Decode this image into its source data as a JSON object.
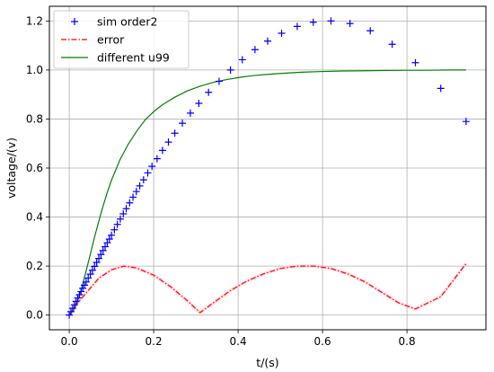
{
  "chart_data": {
    "type": "line",
    "title": "",
    "xlabel": "t/(s)",
    "ylabel": "voltage/(v)",
    "xlim": [
      -0.047,
      0.987
    ],
    "ylim": [
      -0.06,
      1.26
    ],
    "xticks": [
      "0.0",
      "0.2",
      "0.4",
      "0.6",
      "0.8"
    ],
    "xtick_values": [
      0.0,
      0.2,
      0.4,
      0.6,
      0.8
    ],
    "yticks": [
      "0.0",
      "0.2",
      "0.4",
      "0.6",
      "0.8",
      "1.0",
      "1.2"
    ],
    "ytick_values": [
      0.0,
      0.2,
      0.4,
      0.6,
      0.8,
      1.0,
      1.2
    ],
    "grid": true,
    "legend_position": "top-left",
    "series": [
      {
        "name": "sim order2",
        "style": "markers",
        "marker": "plus",
        "color": "#0000ff",
        "x": [
          0.0,
          0.004,
          0.008,
          0.012,
          0.016,
          0.02,
          0.024,
          0.028,
          0.032,
          0.036,
          0.04,
          0.045,
          0.05,
          0.055,
          0.06,
          0.065,
          0.07,
          0.075,
          0.08,
          0.085,
          0.09,
          0.095,
          0.1,
          0.107,
          0.114,
          0.121,
          0.128,
          0.135,
          0.143,
          0.151,
          0.159,
          0.167,
          0.176,
          0.186,
          0.196,
          0.208,
          0.221,
          0.235,
          0.25,
          0.268,
          0.287,
          0.307,
          0.33,
          0.355,
          0.382,
          0.41,
          0.44,
          0.47,
          0.503,
          0.54,
          0.578,
          0.62,
          0.665,
          0.713,
          0.765,
          0.82,
          0.88,
          0.94
        ],
        "y": [
          0.0,
          0.014,
          0.028,
          0.042,
          0.056,
          0.07,
          0.083,
          0.096,
          0.109,
          0.122,
          0.135,
          0.151,
          0.167,
          0.183,
          0.199,
          0.215,
          0.231,
          0.247,
          0.263,
          0.279,
          0.295,
          0.31,
          0.326,
          0.348,
          0.37,
          0.392,
          0.413,
          0.434,
          0.458,
          0.481,
          0.504,
          0.527,
          0.552,
          0.58,
          0.607,
          0.638,
          0.672,
          0.706,
          0.742,
          0.783,
          0.824,
          0.864,
          0.909,
          0.954,
          1.0,
          1.042,
          1.083,
          1.118,
          1.15,
          1.178,
          1.195,
          1.2,
          1.19,
          1.16,
          1.105,
          1.03,
          0.925,
          0.79
        ]
      },
      {
        "name": "error",
        "style": "dashdot",
        "color": "#ff0000",
        "x": [
          0.0,
          0.02,
          0.04,
          0.07,
          0.1,
          0.13,
          0.16,
          0.2,
          0.24,
          0.28,
          0.31,
          0.34,
          0.38,
          0.42,
          0.46,
          0.5,
          0.54,
          0.58,
          0.62,
          0.66,
          0.7,
          0.74,
          0.78,
          0.82,
          0.88,
          0.94
        ],
        "y": [
          0.0,
          0.05,
          0.09,
          0.15,
          0.185,
          0.2,
          0.192,
          0.163,
          0.116,
          0.058,
          0.01,
          0.048,
          0.098,
          0.138,
          0.168,
          0.19,
          0.2,
          0.2,
          0.19,
          0.168,
          0.136,
          0.093,
          0.05,
          0.025,
          0.075,
          0.21
        ]
      },
      {
        "name": "different u99",
        "style": "line",
        "color": "#008000",
        "x": [
          0.0,
          0.01,
          0.02,
          0.03,
          0.04,
          0.05,
          0.06,
          0.07,
          0.08,
          0.09,
          0.1,
          0.12,
          0.14,
          0.16,
          0.18,
          0.2,
          0.22,
          0.25,
          0.28,
          0.31,
          0.34,
          0.37,
          0.4,
          0.43,
          0.46,
          0.5,
          0.55,
          0.6,
          0.65,
          0.7,
          0.75,
          0.8,
          0.85,
          0.9,
          0.94
        ],
        "y": [
          0.0,
          0.017,
          0.058,
          0.114,
          0.18,
          0.249,
          0.318,
          0.383,
          0.444,
          0.5,
          0.55,
          0.633,
          0.698,
          0.751,
          0.797,
          0.83,
          0.857,
          0.889,
          0.915,
          0.934,
          0.949,
          0.96,
          0.969,
          0.976,
          0.981,
          0.986,
          0.991,
          0.994,
          0.996,
          0.997,
          0.998,
          0.999,
          0.999,
          1.0,
          1.0
        ]
      }
    ]
  }
}
